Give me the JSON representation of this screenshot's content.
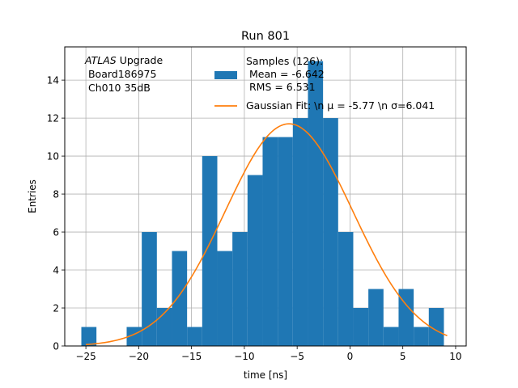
{
  "chart_data": {
    "type": "bar",
    "title": "Run 801",
    "xlabel": "time [ns]",
    "ylabel": "Entries",
    "xlim": [
      -27,
      11
    ],
    "ylim": [
      0,
      15.75
    ],
    "grid": true,
    "xticks": [
      -25,
      -20,
      -15,
      -10,
      -5,
      0,
      5,
      10
    ],
    "yticks": [
      0,
      2,
      4,
      6,
      8,
      10,
      12,
      14
    ],
    "annotation": {
      "lines": [
        {
          "italic": "ATLAS",
          "rest": " Upgrade"
        },
        {
          "italic": "",
          "rest": " Board186975"
        },
        {
          "italic": "",
          "rest": " Ch010 35dB"
        }
      ]
    },
    "legend": {
      "position": "top-right",
      "histogram_label_lines": [
        "Samples (126):",
        " Mean = -6.642",
        " RMS = 6.531"
      ],
      "fit_label": "Gaussian Fit: \\n μ = -5.77 \\n σ=6.041"
    },
    "histogram": {
      "bin_edges": [
        -25.43,
        -24.0,
        -22.57,
        -21.14,
        -19.71,
        -18.28,
        -16.85,
        -15.42,
        -13.99,
        -12.56,
        -11.13,
        -9.7,
        -8.27,
        -6.84,
        -5.41,
        -3.98,
        -2.55,
        -1.12,
        0.31,
        1.74,
        3.17,
        4.6,
        6.03,
        7.46,
        8.89,
        10.32
      ],
      "counts": [
        1,
        0,
        0,
        1,
        6,
        2,
        5,
        1,
        10,
        5,
        6,
        9,
        11,
        11,
        12,
        15,
        12,
        6,
        2,
        3,
        1,
        3,
        1,
        2,
        0
      ],
      "color": "#1f77b4"
    },
    "fit": {
      "mu": -5.77,
      "sigma": 6.041,
      "amplitude": 11.7,
      "x_range": [
        -25.0,
        9.2
      ],
      "color": "#ff7f0e"
    }
  }
}
